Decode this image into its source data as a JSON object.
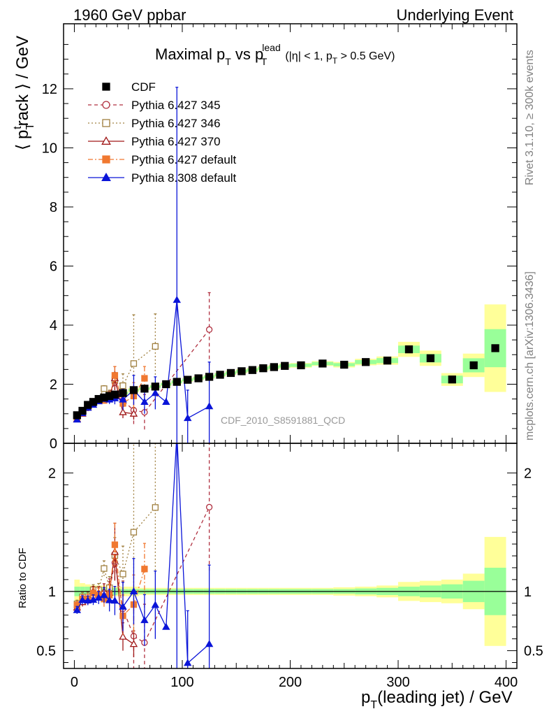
{
  "header": {
    "left": "1960 GeV ppbar",
    "right": "Underlying Event"
  },
  "side_labels": {
    "rivet": "Rivet 3.1.10, ≥ 300k events",
    "mcplots": "mcplots.cern.ch [arXiv:1306.3436]"
  },
  "chart_data": {
    "type": "scatter",
    "title": {
      "main": "Maximal p",
      "sub1": "T",
      "vs": " vs p",
      "sup": "lead",
      "sub2": "T",
      "cut1": "(|η| < 1, p",
      "sub3": "T",
      "cut2": " > 0.5 GeV)"
    },
    "analysis_label": "CDF_2010_S8591881_QCD",
    "xlabel": {
      "main": "p",
      "sub": "T",
      "rest": "(leading jet) / GeV"
    },
    "ylabel": {
      "pre": "⟨ p",
      "sub": "T",
      "sup": "t",
      "post": "rack ⟩ / GeV"
    },
    "ratio_ylabel": "Ratio to CDF",
    "xlim": [
      -10,
      410
    ],
    "ylim": [
      0,
      14.2
    ],
    "ratio_ylim": [
      0.35,
      2.25
    ],
    "x_ticks": [
      0,
      100,
      200,
      300,
      400
    ],
    "y_ticks": [
      0,
      2,
      4,
      6,
      8,
      10,
      12
    ],
    "ratio_ticks": [
      0.5,
      1,
      2
    ],
    "legend_position": "top-left",
    "band": [
      {
        "x0": 0,
        "x1": 5,
        "y": 0.95,
        "e1": 0.04,
        "e2": 0.1
      },
      {
        "x0": 5,
        "x1": 10,
        "y": 1.1,
        "e1": 0.04,
        "e2": 0.07
      },
      {
        "x0": 10,
        "x1": 15,
        "y": 1.3,
        "e1": 0.04,
        "e2": 0.06
      },
      {
        "x0": 15,
        "x1": 20,
        "y": 1.4,
        "e1": 0.03,
        "e2": 0.05
      },
      {
        "x0": 20,
        "x1": 25,
        "y": 1.5,
        "e1": 0.03,
        "e2": 0.05
      },
      {
        "x0": 25,
        "x1": 30,
        "y": 1.55,
        "e1": 0.03,
        "e2": 0.05
      },
      {
        "x0": 30,
        "x1": 35,
        "y": 1.6,
        "e1": 0.03,
        "e2": 0.04
      },
      {
        "x0": 35,
        "x1": 40,
        "y": 1.65,
        "e1": 0.03,
        "e2": 0.04
      },
      {
        "x0": 40,
        "x1": 50,
        "y": 1.7,
        "e1": 0.02,
        "e2": 0.04
      },
      {
        "x0": 50,
        "x1": 60,
        "y": 1.8,
        "e1": 0.02,
        "e2": 0.04
      },
      {
        "x0": 60,
        "x1": 70,
        "y": 1.85,
        "e1": 0.02,
        "e2": 0.03
      },
      {
        "x0": 70,
        "x1": 80,
        "y": 1.92,
        "e1": 0.02,
        "e2": 0.03
      },
      {
        "x0": 80,
        "x1": 90,
        "y": 2.0,
        "e1": 0.02,
        "e2": 0.03
      },
      {
        "x0": 90,
        "x1": 100,
        "y": 2.08,
        "e1": 0.02,
        "e2": 0.03
      },
      {
        "x0": 100,
        "x1": 110,
        "y": 2.15,
        "e1": 0.02,
        "e2": 0.03
      },
      {
        "x0": 110,
        "x1": 120,
        "y": 2.2,
        "e1": 0.02,
        "e2": 0.03
      },
      {
        "x0": 120,
        "x1": 130,
        "y": 2.25,
        "e1": 0.02,
        "e2": 0.03
      },
      {
        "x0": 130,
        "x1": 140,
        "y": 2.32,
        "e1": 0.02,
        "e2": 0.03
      },
      {
        "x0": 140,
        "x1": 150,
        "y": 2.38,
        "e1": 0.02,
        "e2": 0.03
      },
      {
        "x0": 150,
        "x1": 160,
        "y": 2.44,
        "e1": 0.02,
        "e2": 0.03
      },
      {
        "x0": 160,
        "x1": 170,
        "y": 2.48,
        "e1": 0.02,
        "e2": 0.03
      },
      {
        "x0": 170,
        "x1": 180,
        "y": 2.54,
        "e1": 0.02,
        "e2": 0.03
      },
      {
        "x0": 180,
        "x1": 190,
        "y": 2.58,
        "e1": 0.02,
        "e2": 0.03
      },
      {
        "x0": 190,
        "x1": 200,
        "y": 2.62,
        "e1": 0.02,
        "e2": 0.03
      },
      {
        "x0": 200,
        "x1": 220,
        "y": 2.64,
        "e1": 0.02,
        "e2": 0.03
      },
      {
        "x0": 220,
        "x1": 240,
        "y": 2.7,
        "e1": 0.02,
        "e2": 0.03
      },
      {
        "x0": 240,
        "x1": 260,
        "y": 2.66,
        "e1": 0.02,
        "e2": 0.035
      },
      {
        "x0": 260,
        "x1": 280,
        "y": 2.75,
        "e1": 0.025,
        "e2": 0.04
      },
      {
        "x0": 280,
        "x1": 300,
        "y": 2.8,
        "e1": 0.03,
        "e2": 0.05
      },
      {
        "x0": 300,
        "x1": 320,
        "y": 3.18,
        "e1": 0.04,
        "e2": 0.08
      },
      {
        "x0": 320,
        "x1": 340,
        "y": 2.88,
        "e1": 0.05,
        "e2": 0.09
      },
      {
        "x0": 340,
        "x1": 360,
        "y": 2.16,
        "e1": 0.06,
        "e2": 0.1
      },
      {
        "x0": 360,
        "x1": 380,
        "y": 2.64,
        "e1": 0.09,
        "e2": 0.15
      },
      {
        "x0": 380,
        "x1": 400,
        "y": 3.22,
        "e1": 0.2,
        "e2": 0.46
      }
    ],
    "series": [
      {
        "name": "CDF",
        "color": "#000000",
        "marker": "square-filled",
        "line": "none",
        "x": [
          2.5,
          7.5,
          12.5,
          17.5,
          22.5,
          27.5,
          32.5,
          37.5,
          45,
          55,
          65,
          75,
          85,
          95,
          105,
          115,
          125,
          135,
          145,
          155,
          165,
          175,
          185,
          195,
          210,
          230,
          250,
          270,
          290,
          310,
          330,
          350,
          370,
          390
        ],
        "y": [
          0.95,
          1.1,
          1.3,
          1.4,
          1.5,
          1.55,
          1.6,
          1.65,
          1.7,
          1.8,
          1.85,
          1.92,
          2.0,
          2.08,
          2.15,
          2.2,
          2.25,
          2.32,
          2.38,
          2.44,
          2.48,
          2.54,
          2.58,
          2.62,
          2.64,
          2.7,
          2.66,
          2.75,
          2.8,
          3.18,
          2.88,
          2.16,
          2.64,
          3.22
        ]
      },
      {
        "name": "Pythia 6.427 345",
        "color": "#b03040",
        "marker": "circle-open",
        "line": "dashed",
        "x": [
          2.5,
          7.5,
          12.5,
          17.5,
          22.5,
          27.5,
          32.5,
          37.5,
          45,
          55,
          65,
          125
        ],
        "y": [
          0.82,
          1.02,
          1.2,
          1.35,
          1.45,
          1.5,
          1.62,
          2.05,
          1.45,
          1.12,
          1.05,
          3.85
        ],
        "err": [
          0.03,
          0.04,
          0.05,
          0.06,
          0.08,
          0.1,
          0.15,
          0.25,
          0.4,
          0.5,
          0.6,
          1.25
        ]
      },
      {
        "name": "Pythia 6.427 346",
        "color": "#a08040",
        "marker": "square-open",
        "line": "dotted",
        "x": [
          2.5,
          7.5,
          12.5,
          17.5,
          22.5,
          27.5,
          32.5,
          37.5,
          45,
          55,
          75
        ],
        "y": [
          0.85,
          1.05,
          1.24,
          1.42,
          1.52,
          1.85,
          1.65,
          2.15,
          1.95,
          2.7,
          3.28
        ],
        "err": [
          0.03,
          0.04,
          0.05,
          0.06,
          0.08,
          0.1,
          0.15,
          0.25,
          0.4,
          1.65,
          1.1
        ]
      },
      {
        "name": "Pythia 6.427 370",
        "color": "#a01818",
        "marker": "triangle-open",
        "line": "solid",
        "x": [
          2.5,
          7.5,
          12.5,
          17.5,
          22.5,
          27.5,
          32.5,
          37.5,
          45,
          55
        ],
        "y": [
          0.82,
          1.0,
          1.22,
          1.4,
          1.48,
          1.55,
          1.58,
          2.2,
          1.05,
          1.0
        ],
        "err": [
          0.03,
          0.04,
          0.05,
          0.06,
          0.08,
          0.1,
          0.15,
          0.4,
          0.2,
          0.2
        ]
      },
      {
        "name": "Pythia 6.427 default",
        "color": "#f07830",
        "marker": "square-filled",
        "line": "dashdot",
        "x": [
          2.5,
          7.5,
          12.5,
          17.5,
          22.5,
          27.5,
          32.5,
          37.5,
          45,
          55,
          65
        ],
        "y": [
          0.84,
          1.03,
          1.22,
          1.38,
          1.46,
          1.45,
          1.55,
          2.3,
          1.35,
          1.6,
          2.2
        ],
        "err": [
          0.03,
          0.04,
          0.05,
          0.06,
          0.08,
          0.1,
          0.15,
          0.3,
          0.3,
          0.45,
          0.4
        ]
      },
      {
        "name": "Pythia 8.308 default",
        "color": "#0a14d8",
        "marker": "triangle-filled",
        "line": "solid",
        "x": [
          2.5,
          7.5,
          12.5,
          17.5,
          22.5,
          27.5,
          32.5,
          37.5,
          45,
          55,
          65,
          75,
          85,
          95,
          105,
          125
        ],
        "y": [
          0.8,
          1.02,
          1.2,
          1.3,
          1.42,
          1.5,
          1.48,
          1.52,
          1.48,
          1.8,
          1.4,
          1.7,
          1.4,
          4.85,
          0.85,
          1.25
        ],
        "err": [
          0.03,
          0.04,
          0.05,
          0.06,
          0.08,
          0.1,
          0.15,
          0.2,
          0.35,
          0.5,
          0.4,
          0.55,
          0.0,
          7.2,
          0.95,
          1.5
        ]
      }
    ]
  }
}
